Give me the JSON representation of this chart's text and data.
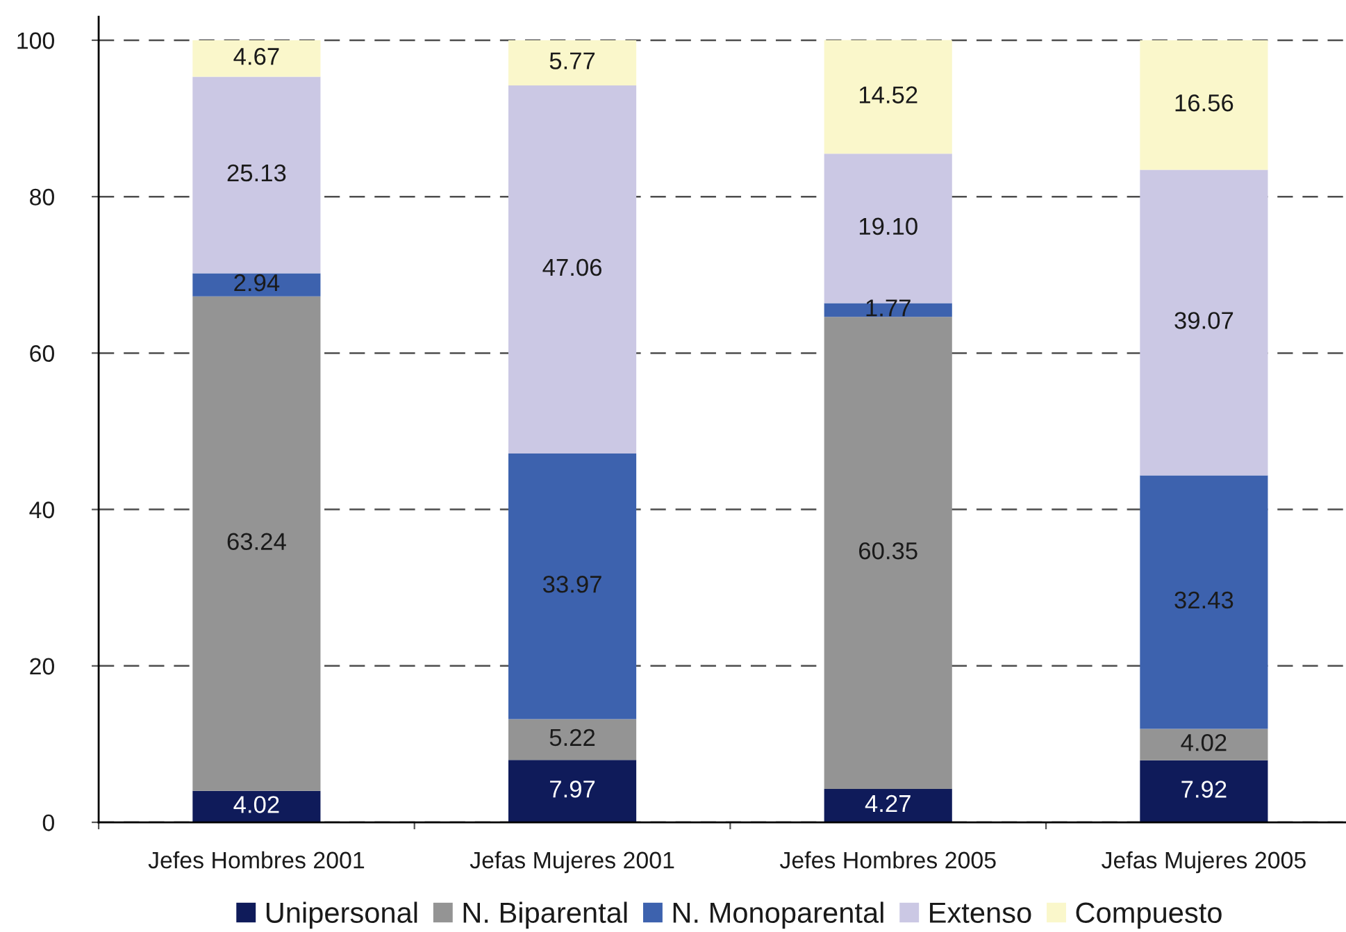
{
  "chart_data": {
    "type": "bar",
    "stacked": true,
    "categories": [
      "Jefes Hombres 2001",
      "Jefas Mujeres 2001",
      "Jefes Hombres 2005",
      "Jefas Mujeres 2005"
    ],
    "series": [
      {
        "name": "Unipersonal",
        "color": "#0f1b5a",
        "values": [
          4.02,
          7.97,
          4.27,
          7.92
        ],
        "value_labels": [
          "4.02",
          "7.97",
          "4.27",
          "7.92"
        ]
      },
      {
        "name": "N. Biparental",
        "color": "#949494",
        "values": [
          63.24,
          5.22,
          60.35,
          4.02
        ],
        "value_labels": [
          "63.24",
          "5.22",
          "60.35",
          "4.02"
        ]
      },
      {
        "name": "N. Monoparental",
        "color": "#3d62ae",
        "values": [
          2.94,
          33.97,
          1.77,
          32.43
        ],
        "value_labels": [
          "2.94",
          "33.97",
          "1.77",
          "32.43"
        ]
      },
      {
        "name": "Extenso",
        "color": "#cbc8e4",
        "values": [
          25.13,
          47.06,
          19.1,
          39.07
        ],
        "value_labels": [
          "25.13",
          "47.06",
          "19.10",
          "39.07"
        ]
      },
      {
        "name": "Compuesto",
        "color": "#faf7cb",
        "values": [
          4.67,
          5.77,
          14.52,
          16.56
        ],
        "value_labels": [
          "4.67",
          "5.77",
          "14.52",
          "16.56"
        ]
      }
    ],
    "ylim": [
      0,
      103
    ],
    "yticks": [
      0,
      20,
      40,
      60,
      80,
      100
    ],
    "grid": "y",
    "legend": "bottom"
  }
}
